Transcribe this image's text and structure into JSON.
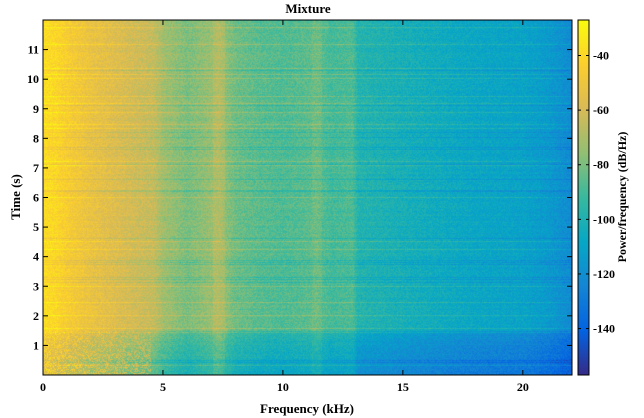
{
  "chart_data": {
    "type": "heatmap",
    "title": "Mixture",
    "xlabel": "Frequency (kHz)",
    "ylabel": "Time (s)",
    "colorbar_label": "Power/frequency (dB/Hz)",
    "xlim": [
      0,
      22.05
    ],
    "ylim": [
      0,
      12
    ],
    "x_ticks": [
      0,
      5,
      10,
      15,
      20
    ],
    "y_ticks": [
      1,
      2,
      3,
      4,
      5,
      6,
      7,
      8,
      9,
      10,
      11
    ],
    "colorbar_range": [
      -157,
      -27
    ],
    "colorbar_ticks": [
      -40,
      -60,
      -80,
      -100,
      -120,
      -140
    ],
    "colormap": "parula",
    "colormap_colors": [
      "#352a87",
      "#0363e1",
      "#1485d4",
      "#06a7c6",
      "#38b99e",
      "#92bf73",
      "#d9ba56",
      "#fcce2e",
      "#f9fb0e"
    ],
    "spectral_profile": {
      "frequency_khz": [
        0,
        0.5,
        1,
        2,
        3,
        4,
        4.6,
        5,
        6,
        7.3,
        8,
        9,
        10,
        11.4,
        12,
        12.9,
        13.1,
        15,
        18,
        20,
        21,
        22.05
      ],
      "power_db": [
        -38,
        -40,
        -45,
        -52,
        -57,
        -62,
        -64,
        -72,
        -80,
        -72,
        -82,
        -86,
        -88,
        -85,
        -90,
        -88,
        -98,
        -102,
        -108,
        -110,
        -114,
        -122
      ]
    }
  }
}
